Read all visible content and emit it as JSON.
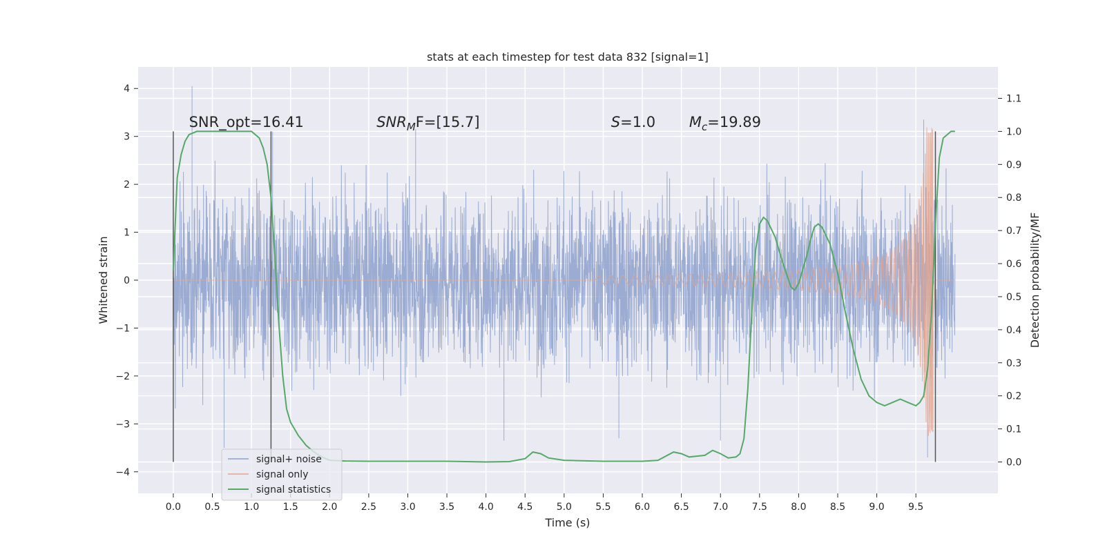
{
  "chart_data": {
    "type": "line",
    "title": "stats at each timestep for test data 832 [signal=1]",
    "xlabel": "Time (s)",
    "ylabel": "Whitened strain",
    "y2label": "Detection probability/MF",
    "xlim": [
      -0.45,
      10.55
    ],
    "ylim": [
      -4.45,
      4.45
    ],
    "y2lim": [
      -0.095,
      1.195
    ],
    "x_ticks": [
      "0.0",
      "0.5",
      "1.0",
      "1.5",
      "2.0",
      "2.5",
      "3.0",
      "3.5",
      "4.0",
      "4.5",
      "5.0",
      "5.5",
      "6.0",
      "6.5",
      "7.0",
      "7.5",
      "8.0",
      "8.5",
      "9.0",
      "9.5"
    ],
    "y_ticks": [
      "4",
      "3",
      "2",
      "1",
      "0",
      "−1",
      "−2",
      "−3",
      "−4"
    ],
    "y2_ticks": [
      "1.1",
      "1.0",
      "0.9",
      "0.8",
      "0.7",
      "0.6",
      "0.5",
      "0.4",
      "0.3",
      "0.2",
      "0.1",
      "0.0"
    ],
    "grid": true,
    "legend_position": "lower-left",
    "annotations": [
      {
        "text": "SNR_opt=16.41",
        "x": 0.2,
        "y": 3.2
      },
      {
        "prefix": "SNR",
        "sub": "M",
        "suffix": "F=[15.7]",
        "x": 2.6,
        "y": 3.2
      },
      {
        "prefix": "S",
        "sub": "",
        "suffix": "=1.0",
        "x": 5.6,
        "y": 3.2
      },
      {
        "prefix": "M",
        "sub": "c",
        "suffix": "=19.89",
        "x": 6.6,
        "y": 3.2
      }
    ],
    "vertical_lines": [
      0.0,
      1.25,
      9.75
    ],
    "series": [
      {
        "name": "signal+ noise",
        "color": "#8da0cb",
        "axis": "left",
        "t_range": [
          0.0,
          10.0
        ],
        "band_sigma": 0.9,
        "extremes": [
          {
            "x": 0.24,
            "y": 4.05
          },
          {
            "x": 0.65,
            "y": -3.5
          },
          {
            "x": 1.27,
            "y": 3.1
          },
          {
            "x": 3.1,
            "y": 3.15
          },
          {
            "x": 4.23,
            "y": -3.35
          },
          {
            "x": 5.7,
            "y": -3.3
          },
          {
            "x": 7.0,
            "y": -3.35
          },
          {
            "x": 9.6,
            "y": 3.35
          },
          {
            "x": 9.65,
            "y": -3.7
          }
        ]
      },
      {
        "name": "signal only",
        "color": "#e5a48c",
        "axis": "left",
        "t_range": [
          5.4,
          9.72
        ],
        "peak": {
          "x": 9.66,
          "y": -3.25
        }
      },
      {
        "name": "signal statistics",
        "color": "#55a868",
        "axis": "right",
        "x": [
          0.0,
          0.05,
          0.1,
          0.15,
          0.2,
          0.3,
          0.5,
          0.8,
          1.0,
          1.05,
          1.1,
          1.15,
          1.2,
          1.25,
          1.3,
          1.35,
          1.4,
          1.45,
          1.5,
          1.55,
          1.6,
          1.7,
          1.8,
          1.9,
          2.0,
          2.2,
          2.5,
          3.0,
          3.5,
          4.0,
          4.3,
          4.5,
          4.6,
          4.7,
          4.8,
          5.0,
          5.5,
          6.0,
          6.2,
          6.4,
          6.5,
          6.6,
          6.8,
          6.9,
          7.0,
          7.1,
          7.2,
          7.25,
          7.3,
          7.35,
          7.4,
          7.45,
          7.5,
          7.55,
          7.6,
          7.7,
          7.8,
          7.9,
          7.95,
          8.0,
          8.05,
          8.1,
          8.15,
          8.2,
          8.25,
          8.3,
          8.4,
          8.5,
          8.6,
          8.7,
          8.8,
          8.9,
          9.0,
          9.1,
          9.2,
          9.3,
          9.4,
          9.5,
          9.55,
          9.6,
          9.65,
          9.7,
          9.75,
          9.8,
          9.85,
          9.9,
          9.95,
          10.0
        ],
        "y": [
          0.58,
          0.86,
          0.93,
          0.97,
          0.99,
          1.0,
          1.0,
          1.0,
          1.0,
          0.99,
          0.98,
          0.95,
          0.9,
          0.8,
          0.62,
          0.42,
          0.26,
          0.16,
          0.12,
          0.1,
          0.08,
          0.05,
          0.03,
          0.015,
          0.005,
          0.003,
          0.002,
          0.002,
          0.002,
          0.0,
          0.001,
          0.01,
          0.03,
          0.025,
          0.012,
          0.005,
          0.002,
          0.002,
          0.005,
          0.03,
          0.025,
          0.015,
          0.02,
          0.035,
          0.025,
          0.012,
          0.015,
          0.025,
          0.07,
          0.22,
          0.45,
          0.64,
          0.72,
          0.74,
          0.73,
          0.68,
          0.6,
          0.53,
          0.52,
          0.54,
          0.58,
          0.62,
          0.67,
          0.71,
          0.72,
          0.71,
          0.66,
          0.57,
          0.45,
          0.34,
          0.25,
          0.2,
          0.18,
          0.17,
          0.18,
          0.19,
          0.18,
          0.17,
          0.18,
          0.2,
          0.28,
          0.45,
          0.72,
          0.92,
          0.98,
          0.99,
          1.0,
          1.0
        ]
      }
    ]
  }
}
